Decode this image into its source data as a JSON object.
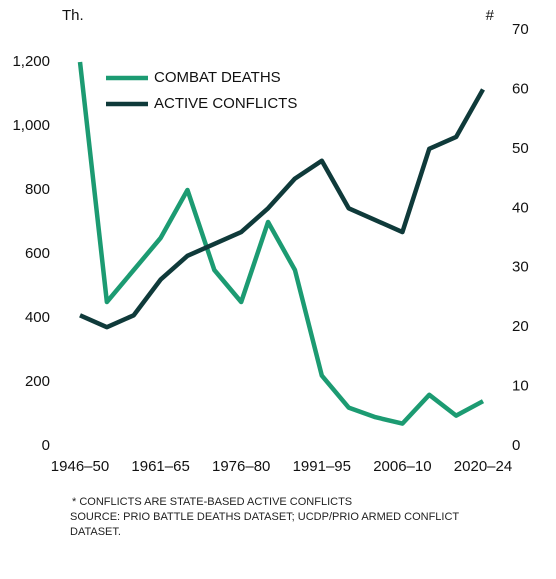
{
  "chart_data": {
    "type": "line",
    "y_unit_label": "Th.",
    "y2_unit_label": "#",
    "categories": [
      "1946–50",
      null,
      null,
      "1961–65",
      null,
      null,
      "1976–80",
      null,
      null,
      "1991–95",
      null,
      null,
      "2006–10",
      null,
      null,
      "2020–24"
    ],
    "series": [
      {
        "name": "COMBAT DEATHS",
        "color": "#1c9b72",
        "values": [
          1200,
          450,
          550,
          650,
          800,
          550,
          450,
          700,
          550,
          220,
          120,
          90,
          70,
          160,
          95,
          140
        ]
      },
      {
        "name": "ACTIVE CONFLICTS",
        "color": "#0f3a3a",
        "axis": "y2",
        "values": [
          22,
          20,
          22,
          28,
          32,
          34,
          36,
          40,
          45,
          48,
          40,
          38,
          36,
          50,
          52,
          60
        ]
      }
    ],
    "ylim": [
      0,
      1300
    ],
    "yticks": [
      0,
      200,
      400,
      600,
      800,
      {
        "value": 1000,
        "label": "1,000"
      },
      {
        "value": 1200,
        "label": "1,200"
      }
    ],
    "y2lim": [
      0,
      70
    ],
    "y2ticks": [
      0,
      10,
      20,
      30,
      40,
      50,
      60,
      70
    ],
    "legend": "top-left",
    "notes": [
      "* CONFLICTS ARE STATE-BASED ACTIVE CONFLICTS",
      "SOURCE: PRIO BATTLE DEATHS DATASET; UCDP/PRIO ARMED CONFLICT",
      "DATASET."
    ]
  }
}
